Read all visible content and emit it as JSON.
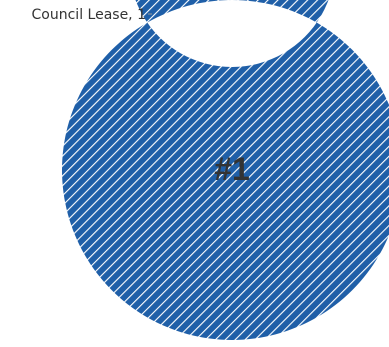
{
  "chart_data": {
    "type": "pie",
    "variant": "donut",
    "categories": [
      "Council Lease"
    ],
    "values": [
      1
    ],
    "slice_labels": [
      "Council Lease, 1"
    ],
    "center_text": "#1",
    "fill_pattern": "diagonal-stripes",
    "colors": {
      "slice": "#1f5fa8",
      "stripe": "#ffffff",
      "text": "#333333",
      "leader": "#999999"
    },
    "legend": "none"
  }
}
